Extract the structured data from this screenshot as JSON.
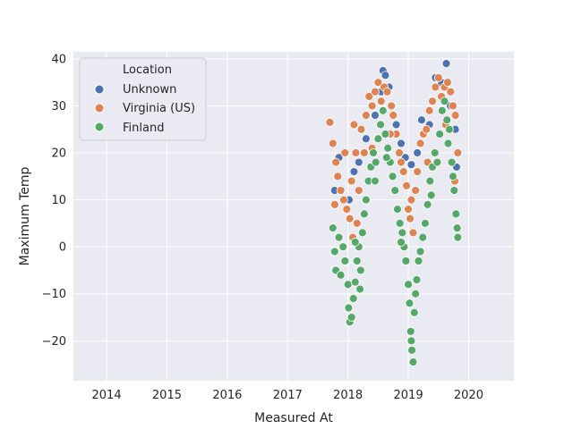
{
  "chart_data": {
    "type": "scatter",
    "title": "",
    "xlabel": "Measured At",
    "ylabel": "Maximum Temp",
    "xlim": [
      2013.45,
      2020.75
    ],
    "ylim": [
      -28.5,
      41.5
    ],
    "x_ticks": [
      "2014",
      "2015",
      "2016",
      "2017",
      "2018",
      "2019",
      "2020"
    ],
    "y_ticks": [
      "−20",
      "−10",
      "0",
      "10",
      "20",
      "30",
      "40"
    ],
    "y_tick_values": [
      -20,
      -10,
      0,
      10,
      20,
      30,
      40
    ],
    "grid": true,
    "legend": {
      "title": "Location",
      "position": "top-left"
    },
    "colors": {
      "Unknown": "#4c72b0",
      "Virginia (US)": "#dd8452",
      "Finland": "#55a868",
      "background": "#eaeaf2",
      "grid": "#ffffff"
    },
    "series": [
      {
        "name": "Unknown",
        "points": [
          [
            2017.78,
            12
          ],
          [
            2017.85,
            19
          ],
          [
            2018.02,
            10
          ],
          [
            2018.1,
            16
          ],
          [
            2018.18,
            18
          ],
          [
            2018.3,
            23
          ],
          [
            2018.45,
            28
          ],
          [
            2018.55,
            33
          ],
          [
            2018.58,
            37.5
          ],
          [
            2018.62,
            36.5
          ],
          [
            2018.68,
            34
          ],
          [
            2018.8,
            26
          ],
          [
            2018.88,
            22
          ],
          [
            2018.95,
            19
          ],
          [
            2019.05,
            17.5
          ],
          [
            2019.15,
            20
          ],
          [
            2019.22,
            27
          ],
          [
            2019.35,
            26
          ],
          [
            2019.45,
            36
          ],
          [
            2019.55,
            35
          ],
          [
            2019.63,
            39
          ],
          [
            2019.7,
            30
          ],
          [
            2019.78,
            25
          ],
          [
            2019.8,
            17
          ]
        ]
      },
      {
        "name": "Virginia (US)",
        "points": [
          [
            2017.7,
            26.5
          ],
          [
            2017.75,
            22
          ],
          [
            2017.8,
            18
          ],
          [
            2017.83,
            15
          ],
          [
            2017.88,
            12
          ],
          [
            2017.93,
            10
          ],
          [
            2017.98,
            8
          ],
          [
            2018.03,
            6
          ],
          [
            2018.06,
            14
          ],
          [
            2018.1,
            26
          ],
          [
            2018.13,
            20
          ],
          [
            2018.18,
            12
          ],
          [
            2018.22,
            25
          ],
          [
            2018.27,
            20
          ],
          [
            2018.3,
            28
          ],
          [
            2018.35,
            32
          ],
          [
            2018.4,
            30
          ],
          [
            2018.45,
            33
          ],
          [
            2018.5,
            35
          ],
          [
            2018.55,
            31
          ],
          [
            2018.6,
            34
          ],
          [
            2018.65,
            33
          ],
          [
            2018.72,
            30
          ],
          [
            2018.75,
            28
          ],
          [
            2018.8,
            24
          ],
          [
            2018.85,
            20
          ],
          [
            2018.88,
            18
          ],
          [
            2018.92,
            16
          ],
          [
            2018.97,
            13
          ],
          [
            2019.0,
            8
          ],
          [
            2019.03,
            6
          ],
          [
            2019.08,
            3
          ],
          [
            2019.12,
            12
          ],
          [
            2019.15,
            16
          ],
          [
            2019.2,
            22
          ],
          [
            2019.25,
            24
          ],
          [
            2019.3,
            25
          ],
          [
            2019.35,
            29
          ],
          [
            2019.4,
            31
          ],
          [
            2019.45,
            34
          ],
          [
            2019.5,
            36
          ],
          [
            2019.55,
            32
          ],
          [
            2019.6,
            34
          ],
          [
            2019.65,
            35
          ],
          [
            2019.7,
            33
          ],
          [
            2019.74,
            30
          ],
          [
            2019.78,
            28
          ],
          [
            2019.82,
            20
          ],
          [
            2017.78,
            9
          ],
          [
            2017.95,
            20
          ],
          [
            2018.15,
            5
          ],
          [
            2018.4,
            21
          ],
          [
            2018.7,
            24
          ],
          [
            2019.05,
            10
          ],
          [
            2019.32,
            18
          ],
          [
            2019.62,
            26
          ],
          [
            2019.77,
            14
          ],
          [
            2018.08,
            2
          ]
        ]
      },
      {
        "name": "Finland",
        "points": [
          [
            2017.75,
            4
          ],
          [
            2017.78,
            -1
          ],
          [
            2017.8,
            -5
          ],
          [
            2017.85,
            2
          ],
          [
            2017.88,
            -6
          ],
          [
            2017.92,
            0
          ],
          [
            2017.95,
            -3
          ],
          [
            2018.0,
            -8
          ],
          [
            2018.03,
            -16
          ],
          [
            2018.06,
            -15
          ],
          [
            2018.09,
            -11
          ],
          [
            2018.12,
            -7.5
          ],
          [
            2018.15,
            -3
          ],
          [
            2018.18,
            0
          ],
          [
            2018.21,
            -5
          ],
          [
            2018.24,
            3
          ],
          [
            2018.27,
            7
          ],
          [
            2018.3,
            10
          ],
          [
            2018.34,
            14
          ],
          [
            2018.38,
            17
          ],
          [
            2018.42,
            20
          ],
          [
            2018.46,
            18
          ],
          [
            2018.5,
            23
          ],
          [
            2018.54,
            26
          ],
          [
            2018.58,
            29
          ],
          [
            2018.62,
            24
          ],
          [
            2018.66,
            21
          ],
          [
            2018.7,
            18
          ],
          [
            2018.74,
            15
          ],
          [
            2018.78,
            12
          ],
          [
            2018.82,
            8
          ],
          [
            2018.86,
            5
          ],
          [
            2018.9,
            3
          ],
          [
            2018.93,
            0
          ],
          [
            2018.96,
            -3
          ],
          [
            2019.0,
            -8
          ],
          [
            2019.02,
            -12
          ],
          [
            2019.04,
            -18
          ],
          [
            2019.06,
            -22
          ],
          [
            2019.08,
            -24.5
          ],
          [
            2019.1,
            -14
          ],
          [
            2019.12,
            -10
          ],
          [
            2019.14,
            -7
          ],
          [
            2019.17,
            -3
          ],
          [
            2019.2,
            -1
          ],
          [
            2019.24,
            2
          ],
          [
            2019.28,
            5
          ],
          [
            2019.32,
            9
          ],
          [
            2019.36,
            14
          ],
          [
            2019.4,
            17
          ],
          [
            2019.44,
            20
          ],
          [
            2019.48,
            18
          ],
          [
            2019.52,
            24
          ],
          [
            2019.56,
            29
          ],
          [
            2019.6,
            31
          ],
          [
            2019.64,
            27
          ],
          [
            2019.68,
            25
          ],
          [
            2019.72,
            18
          ],
          [
            2019.76,
            12
          ],
          [
            2019.79,
            7
          ],
          [
            2019.81,
            4
          ],
          [
            2019.82,
            2
          ],
          [
            2018.01,
            -13
          ],
          [
            2018.2,
            -9
          ],
          [
            2018.45,
            14
          ],
          [
            2018.64,
            19
          ],
          [
            2018.88,
            1
          ],
          [
            2019.05,
            -20
          ],
          [
            2019.38,
            11
          ],
          [
            2019.66,
            22
          ],
          [
            2019.74,
            15
          ],
          [
            2018.12,
            1
          ]
        ]
      }
    ]
  }
}
